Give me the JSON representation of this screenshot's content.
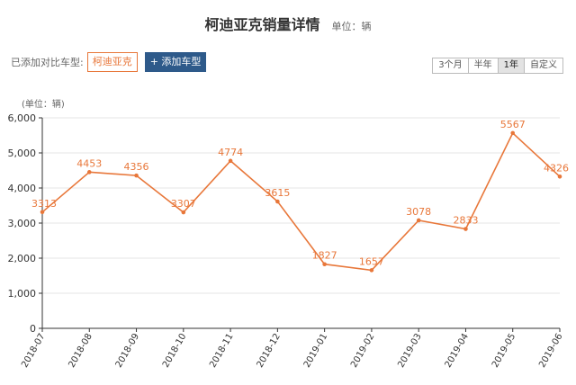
{
  "header": {
    "title": "柯迪亚克销量详情",
    "unit": "单位：辆"
  },
  "toolbar": {
    "compare_label": "已添加对比车型:",
    "selected_model": "柯迪亚克",
    "add_button": "+ 添加车型"
  },
  "range_buttons": [
    "3个月",
    "半年",
    "1年",
    "自定义"
  ],
  "active_range": "1年",
  "colors": {
    "series": "#e8773a",
    "axis": "#333333",
    "grid": "#e6e6e6",
    "button": "#2e5a8a"
  },
  "chart_data": {
    "type": "line",
    "ylabel": "(单位：辆)",
    "ylim": [
      0,
      6000
    ],
    "yticks": [
      "0",
      "1,000",
      "2,000",
      "3,000",
      "4,000",
      "5,000",
      "6,000"
    ],
    "categories": [
      "2018-07",
      "2018-08",
      "2018-09",
      "2018-10",
      "2018-11",
      "2018-12",
      "2019-01",
      "2019-02",
      "2019-03",
      "2019-04",
      "2019-05",
      "2019-06"
    ],
    "series": [
      {
        "values": [
          3313,
          4453,
          4356,
          3307,
          4774,
          3615,
          1827,
          1657,
          3078,
          2833,
          5567,
          4326
        ]
      }
    ],
    "grid": true
  }
}
